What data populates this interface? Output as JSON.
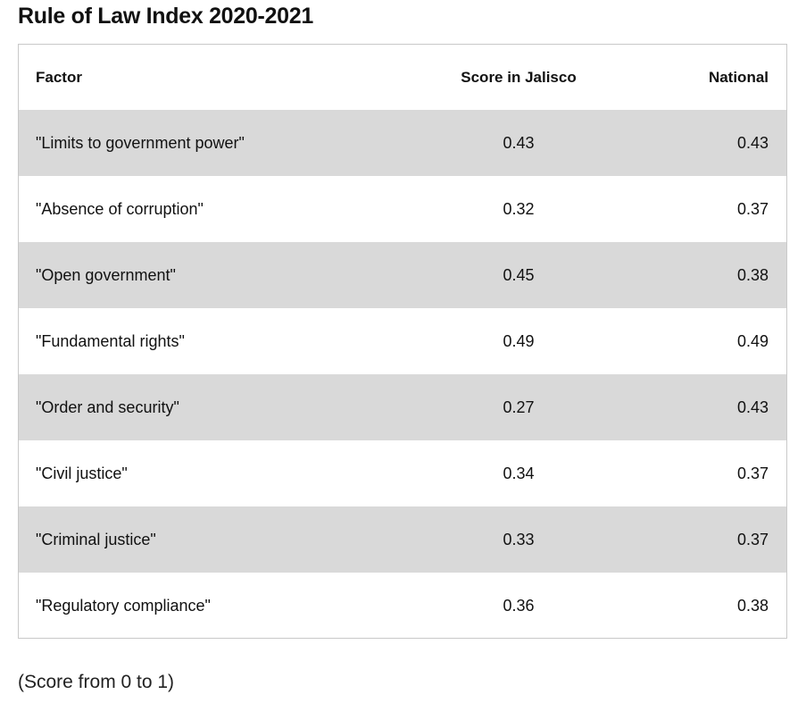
{
  "chart_data": {
    "type": "table",
    "title": "Rule of Law Index 2020-2021",
    "columns": [
      "Factor",
      "Score in Jalisco",
      "National"
    ],
    "rows": [
      {
        "factor": "\"Limits to government power\"",
        "jalisco": "0.43",
        "national": "0.43"
      },
      {
        "factor": "\"Absence of corruption\"",
        "jalisco": "0.32",
        "national": "0.37"
      },
      {
        "factor": "\"Open government\"",
        "jalisco": "0.45",
        "national": "0.38"
      },
      {
        "factor": "\"Fundamental rights\"",
        "jalisco": "0.49",
        "national": "0.49"
      },
      {
        "factor": "\"Order and security\"",
        "jalisco": "0.27",
        "national": "0.43"
      },
      {
        "factor": "\"Civil justice\"",
        "jalisco": "0.34",
        "national": "0.37"
      },
      {
        "factor": "\"Criminal justice\"",
        "jalisco": "0.33",
        "national": "0.37"
      },
      {
        "factor": "\"Regulatory compliance\"",
        "jalisco": "0.36",
        "national": "0.38"
      }
    ],
    "note": "(Score from 0 to 1)"
  },
  "colors": {
    "shaded_row": "#d9d9d9",
    "border": "#c9c9c9",
    "text": "#111111"
  }
}
